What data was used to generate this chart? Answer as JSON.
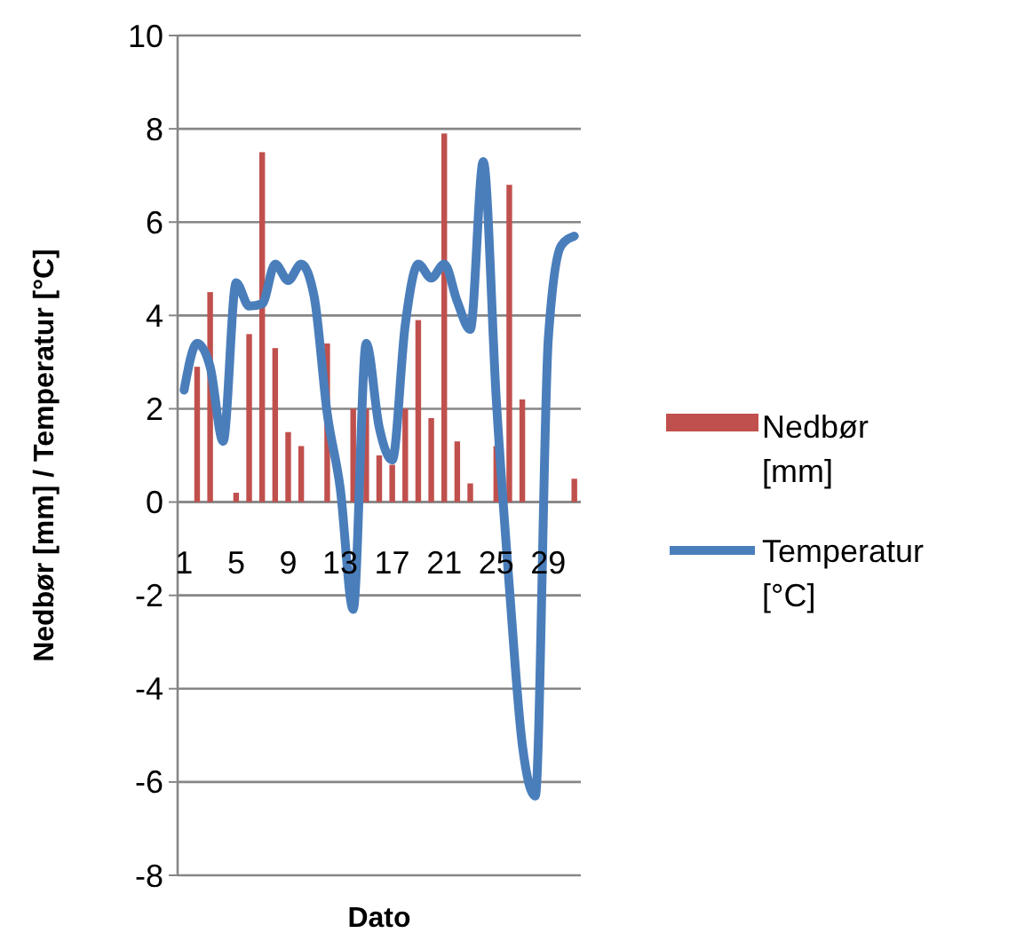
{
  "chart_data": {
    "type": "bar",
    "xlabel": "Dato",
    "ylabel": "Nedbør [mm] / Temperatur [°C]",
    "categories": [
      "1",
      null,
      null,
      null,
      "5",
      null,
      null,
      null,
      "9",
      null,
      null,
      null,
      "13",
      null,
      null,
      null,
      "17",
      null,
      null,
      null,
      "21",
      null,
      null,
      null,
      "25",
      null,
      null,
      null,
      "29",
      null,
      null
    ],
    "series": [
      {
        "name": "Nedbør [mm]",
        "color": "#c0504d",
        "values": [
          null,
          2.9,
          4.5,
          null,
          0.2,
          3.6,
          7.5,
          3.3,
          1.5,
          1.2,
          null,
          3.4,
          null,
          2.0,
          2.0,
          1.0,
          0.8,
          2.0,
          3.9,
          1.8,
          7.9,
          1.3,
          0.4,
          null,
          1.2,
          6.8,
          2.2,
          null,
          null,
          null,
          0.5
        ]
      },
      {
        "name": "Temperatur [°C]",
        "type": "line",
        "color": "#4a7ebb",
        "values": [
          2.4,
          3.4,
          2.9,
          1.3,
          4.7,
          4.2,
          4.25,
          5.1,
          4.75,
          5.1,
          4.4,
          1.9,
          0.3,
          -2.3,
          3.4,
          1.6,
          0.9,
          3.8,
          5.1,
          4.8,
          5.1,
          4.3,
          3.7,
          7.3,
          2.2,
          -1.8,
          -5.2,
          -6.3,
          3.5,
          5.5,
          5.7
        ]
      }
    ],
    "ylim": [
      -8,
      10
    ],
    "yticks": [
      -8,
      -6,
      -4,
      -2,
      0,
      2,
      4,
      6,
      8,
      10
    ],
    "grid": "y",
    "legend": "right",
    "marker": "none",
    "line_style": "solid"
  }
}
